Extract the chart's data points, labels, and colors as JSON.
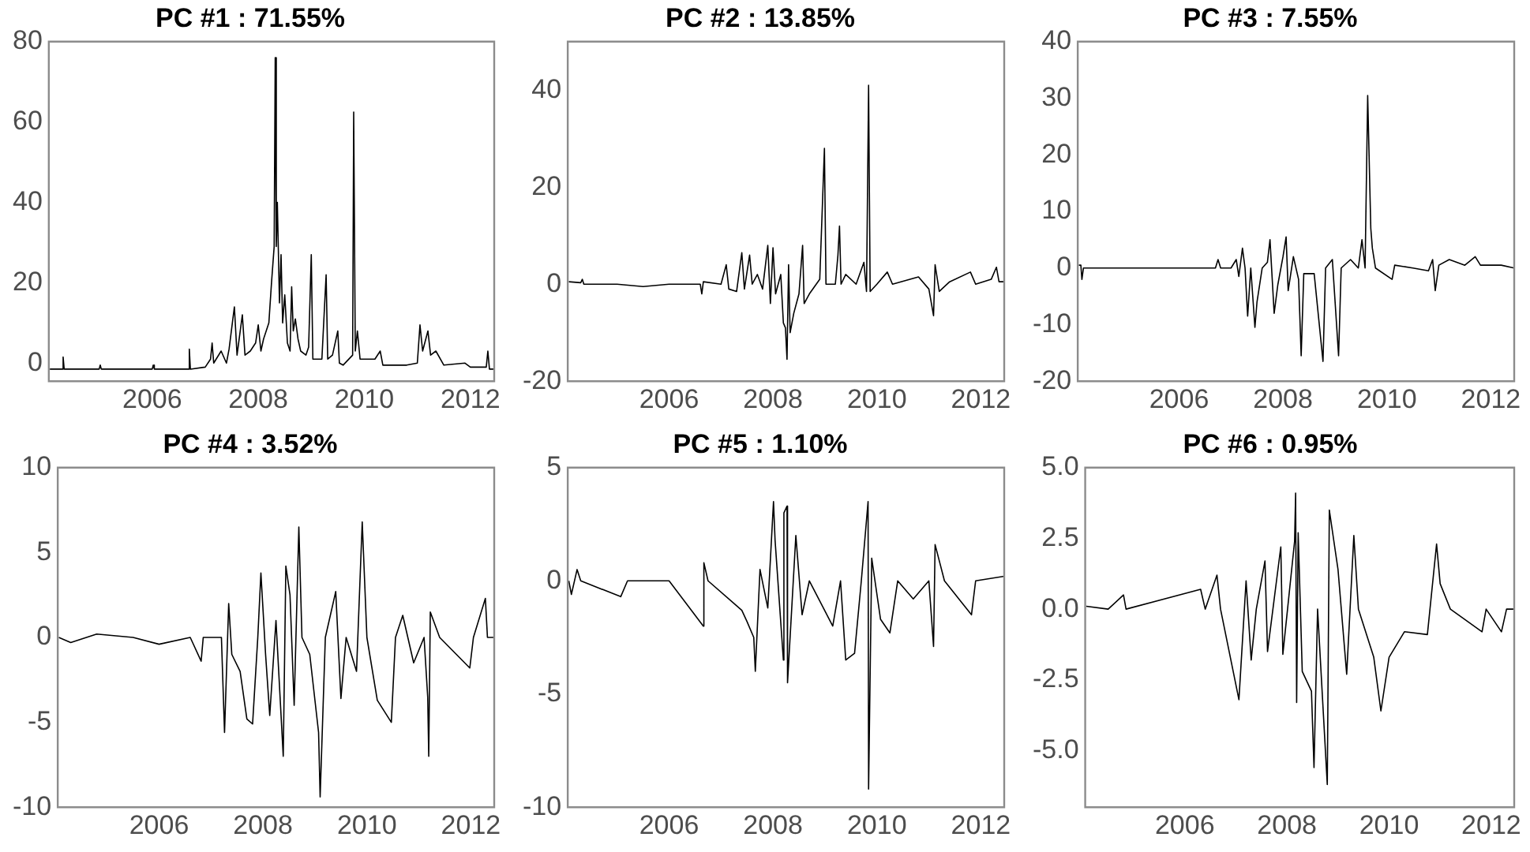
{
  "chart_data": [
    {
      "type": "line",
      "title": "PC #1 : 71.55%",
      "marker": "none",
      "line_style": "solid",
      "xlim": [
        2004.05,
        2012.45
      ],
      "xticks": [
        2006,
        2008,
        2010,
        2012
      ],
      "ylim": [
        -4.5,
        80
      ],
      "yticks": [
        0,
        20,
        40,
        60,
        80
      ],
      "x": [
        2004.07,
        2004.3,
        2004.32,
        2004.34,
        2005.0,
        2005.02,
        2005.04,
        2006.0,
        2006.02,
        2006.04,
        2006.68,
        2006.7,
        2006.72,
        2007.0,
        2007.1,
        2007.13,
        2007.16,
        2007.3,
        2007.4,
        2007.45,
        2007.55,
        2007.6,
        2007.7,
        2007.75,
        2007.85,
        2007.95,
        2008.0,
        2008.05,
        2008.1,
        2008.2,
        2008.25,
        2008.3,
        2008.32,
        2008.34,
        2008.36,
        2008.4,
        2008.43,
        2008.46,
        2008.5,
        2008.55,
        2008.6,
        2008.63,
        2008.66,
        2008.7,
        2008.75,
        2008.8,
        2008.9,
        2008.95,
        2009.0,
        2009.03,
        2009.2,
        2009.28,
        2009.31,
        2009.4,
        2009.5,
        2009.53,
        2009.6,
        2009.78,
        2009.8,
        2009.83,
        2009.87,
        2009.92,
        2010.2,
        2010.3,
        2010.35,
        2010.8,
        2011.0,
        2011.05,
        2011.1,
        2011.2,
        2011.25,
        2011.35,
        2011.5,
        2011.9,
        2012.0,
        2012.3,
        2012.33,
        2012.36,
        2012.45
      ],
      "series": [
        {
          "color": "#000000",
          "values": [
            -1.5,
            -1.5,
            1.5,
            -1.5,
            -1.5,
            -0.5,
            -1.5,
            -1.5,
            -0.5,
            -1.5,
            -1.5,
            3.5,
            -1.5,
            -1,
            1,
            5,
            0,
            3,
            0,
            3.5,
            14,
            2,
            12,
            2,
            3,
            5,
            9.5,
            3,
            6,
            10,
            20,
            29,
            76,
            29,
            40,
            15,
            27,
            10,
            17,
            5,
            3,
            19,
            8,
            11,
            6,
            3,
            2,
            4,
            27,
            1,
            1,
            22,
            1,
            2,
            8,
            0,
            -0.5,
            2,
            62.5,
            3,
            8,
            1,
            1,
            3,
            -0.5,
            -0.5,
            0,
            9.5,
            3,
            8,
            2,
            3,
            -0.5,
            0,
            -1,
            -1,
            3,
            -1.5,
            -1.5
          ]
        }
      ]
    },
    {
      "type": "line",
      "title": "PC #2 : 13.85%",
      "marker": "none",
      "line_style": "solid",
      "xlim": [
        2004.05,
        2012.45
      ],
      "xticks": [
        2006,
        2008,
        2010,
        2012
      ],
      "ylim": [
        -20,
        50
      ],
      "yticks": [
        -20,
        0,
        20,
        40
      ],
      "x": [
        2004.07,
        2004.3,
        2004.33,
        2004.36,
        2005.0,
        2005.5,
        2006.0,
        2006.6,
        2006.63,
        2006.66,
        2007.0,
        2007.1,
        2007.15,
        2007.3,
        2007.4,
        2007.45,
        2007.55,
        2007.6,
        2007.7,
        2007.8,
        2007.9,
        2007.95,
        2008.0,
        2008.05,
        2008.15,
        2008.2,
        2008.24,
        2008.27,
        2008.3,
        2008.33,
        2008.4,
        2008.5,
        2008.57,
        2008.6,
        2008.7,
        2008.9,
        2008.95,
        2008.99,
        2009.02,
        2009.2,
        2009.25,
        2009.28,
        2009.31,
        2009.4,
        2009.6,
        2009.75,
        2009.8,
        2009.84,
        2009.87,
        2010.0,
        2010.2,
        2010.3,
        2010.8,
        2011.0,
        2011.09,
        2011.12,
        2011.2,
        2011.4,
        2011.8,
        2011.9,
        2012.2,
        2012.3,
        2012.35,
        2012.45
      ],
      "series": [
        {
          "color": "#000000",
          "values": [
            0.5,
            0.3,
            1,
            0,
            0,
            -0.5,
            0,
            0,
            -2,
            0.5,
            0,
            4,
            -1,
            -1.5,
            6.5,
            -1,
            6,
            0,
            2,
            -1,
            8,
            -4,
            7.5,
            -2,
            2,
            -8,
            -9,
            -15.5,
            4,
            -10,
            -6,
            -2,
            8,
            -4,
            -2,
            1,
            16,
            28,
            0,
            0,
            6,
            12,
            0,
            2,
            0,
            4.5,
            -1.5,
            41,
            -1.5,
            0,
            2.5,
            0,
            1.5,
            -1,
            -6.5,
            4,
            -1.5,
            0.5,
            2.5,
            0,
            1,
            3.5,
            0.5,
            0.5
          ]
        }
      ]
    },
    {
      "type": "line",
      "title": "PC #3 : 7.55%",
      "marker": "none",
      "line_style": "solid",
      "xlim": [
        2004.05,
        2012.45
      ],
      "xticks": [
        2006,
        2008,
        2010,
        2012
      ],
      "ylim": [
        -20,
        40
      ],
      "yticks": [
        -20,
        -10,
        0,
        10,
        20,
        30,
        40
      ],
      "x": [
        2004.07,
        2004.11,
        2004.13,
        2004.16,
        2005.0,
        2006.0,
        2006.7,
        2006.75,
        2006.8,
        2007.0,
        2007.1,
        2007.15,
        2007.22,
        2007.27,
        2007.32,
        2007.38,
        2007.46,
        2007.5,
        2007.6,
        2007.7,
        2007.75,
        2007.83,
        2007.9,
        2008.0,
        2008.06,
        2008.1,
        2008.2,
        2008.3,
        2008.35,
        2008.4,
        2008.6,
        2008.77,
        2008.82,
        2008.95,
        2009.07,
        2009.12,
        2009.3,
        2009.45,
        2009.52,
        2009.58,
        2009.63,
        2009.69,
        2009.72,
        2009.78,
        2010.1,
        2010.15,
        2010.5,
        2010.8,
        2010.88,
        2010.93,
        2011.0,
        2011.2,
        2011.5,
        2011.7,
        2011.8,
        2012.2,
        2012.45
      ],
      "series": [
        {
          "color": "#000000",
          "values": [
            0.5,
            0.5,
            -2,
            0,
            0,
            0,
            0,
            1.5,
            0,
            0,
            1.5,
            -1.5,
            3.5,
            0,
            -8.5,
            0,
            -10.5,
            -6,
            0,
            1,
            5,
            -8,
            -3,
            2,
            5.5,
            -4,
            2,
            -2,
            -15.5,
            -1,
            -1,
            -16.5,
            0,
            1.5,
            -15.5,
            0,
            1.5,
            0,
            5,
            0,
            30.5,
            7,
            3.5,
            0,
            -2,
            0.5,
            0,
            -0.5,
            1.5,
            -4,
            0.5,
            1.5,
            0.5,
            2,
            0.5,
            0.5,
            0
          ]
        }
      ]
    },
    {
      "type": "line",
      "title": "PC #4 : 3.52%",
      "marker": "none",
      "line_style": "solid",
      "xlim": [
        2004.05,
        2012.45
      ],
      "xticks": [
        2006,
        2008,
        2010,
        2012
      ],
      "ylim": [
        -10,
        10
      ],
      "yticks": [
        -10,
        -5,
        0,
        5,
        10
      ],
      "x": [
        2004.07,
        2004.3,
        2004.8,
        2005.5,
        2006.0,
        2006.6,
        2006.81,
        2006.85,
        2007.2,
        2007.26,
        2007.34,
        2007.4,
        2007.56,
        2007.69,
        2007.8,
        2007.9,
        2007.96,
        2008.05,
        2008.13,
        2008.25,
        2008.39,
        2008.44,
        2008.52,
        2008.6,
        2008.69,
        2008.75,
        2008.9,
        2009.07,
        2009.1,
        2009.2,
        2009.4,
        2009.5,
        2009.6,
        2009.8,
        2009.91,
        2010.0,
        2010.2,
        2010.47,
        2010.55,
        2010.69,
        2010.9,
        2011.1,
        2011.17,
        2011.19,
        2011.22,
        2011.4,
        2011.98,
        2012.05,
        2012.28,
        2012.32,
        2012.45
      ],
      "series": [
        {
          "color": "#000000",
          "values": [
            0,
            -0.3,
            0.2,
            0,
            -0.4,
            0,
            -1.4,
            0,
            0,
            -5.6,
            2,
            -1,
            -2,
            -4.8,
            -5.1,
            0,
            3.8,
            -1,
            -4.6,
            1,
            -7,
            4.2,
            2.5,
            -4,
            6.5,
            0,
            -1,
            -5.6,
            -9.4,
            0,
            2.7,
            -3.6,
            0,
            -2,
            6.8,
            0,
            -3.7,
            -5,
            0,
            1.3,
            -1.5,
            0,
            -3.5,
            -7,
            1.5,
            0,
            -1.8,
            0,
            2.3,
            0,
            0
          ]
        }
      ]
    },
    {
      "type": "line",
      "title": "PC #5 : 1.10%",
      "marker": "none",
      "line_style": "solid",
      "xlim": [
        2004.05,
        2012.45
      ],
      "xticks": [
        2006,
        2008,
        2010,
        2012
      ],
      "ylim": [
        -10,
        5
      ],
      "yticks": [
        -10,
        -5,
        0,
        5
      ],
      "x": [
        2004.07,
        2004.12,
        2004.23,
        2004.3,
        2005.07,
        2005.2,
        2006.0,
        2006.66,
        2006.67,
        2006.75,
        2007.4,
        2007.5,
        2007.63,
        2007.66,
        2007.75,
        2007.9,
        2008.01,
        2008.04,
        2008.2,
        2008.21,
        2008.27,
        2008.28,
        2008.44,
        2008.56,
        2008.7,
        2009.15,
        2009.3,
        2009.4,
        2009.57,
        2009.7,
        2009.83,
        2009.84,
        2009.9,
        2010.07,
        2010.25,
        2010.4,
        2010.7,
        2011.0,
        2011.09,
        2011.12,
        2011.3,
        2011.82,
        2011.9,
        2012.45
      ],
      "series": [
        {
          "color": "#000000",
          "values": [
            0,
            -0.6,
            0.5,
            0,
            -0.7,
            0,
            0,
            -2,
            0.8,
            0,
            -1.3,
            -1.8,
            -2.5,
            -4,
            0.5,
            -1.2,
            3.5,
            1.8,
            -3.5,
            3,
            3.3,
            -4.5,
            2,
            -1.5,
            0,
            -2,
            0,
            -3.5,
            -3.2,
            0,
            3.5,
            -9.2,
            1,
            -1.7,
            -2.3,
            0,
            -0.8,
            0,
            -2.9,
            1.6,
            0,
            -1.5,
            0,
            0.2
          ]
        }
      ]
    },
    {
      "type": "line",
      "title": "PC #6 : 0.95%",
      "marker": "none",
      "line_style": "solid",
      "xlim": [
        2004.05,
        2012.45
      ],
      "xticks": [
        2006,
        2008,
        2010,
        2012
      ],
      "ylim": [
        -7,
        5
      ],
      "yticks": [
        {
          "value": -5,
          "label": "-5.0"
        },
        {
          "value": -2.5,
          "label": "-2.5"
        },
        {
          "value": 0,
          "label": "0.0"
        },
        {
          "value": 2.5,
          "label": "2.5"
        },
        {
          "value": 5,
          "label": "5.0"
        }
      ],
      "x": [
        2004.07,
        2004.5,
        2004.8,
        2004.85,
        2006.31,
        2006.4,
        2006.63,
        2006.7,
        2007.06,
        2007.1,
        2007.2,
        2007.3,
        2007.4,
        2007.57,
        2007.62,
        2007.88,
        2007.92,
        2008.15,
        2008.17,
        2008.19,
        2008.22,
        2008.3,
        2008.48,
        2008.53,
        2008.6,
        2008.79,
        2008.83,
        2009.0,
        2009.17,
        2009.31,
        2009.4,
        2009.7,
        2009.84,
        2010.0,
        2010.3,
        2010.75,
        2010.93,
        2011.0,
        2011.2,
        2011.82,
        2011.9,
        2012.2,
        2012.3,
        2012.45
      ],
      "series": [
        {
          "color": "#000000",
          "values": [
            0.1,
            0,
            0.5,
            0,
            0.7,
            0,
            1.2,
            0,
            -3.2,
            -2,
            1,
            -1.8,
            0,
            1.7,
            -1.5,
            2.2,
            -1.6,
            2.4,
            4.1,
            -3.3,
            2.7,
            -2.2,
            -2.9,
            -5.6,
            0,
            -6.2,
            3.5,
            1.4,
            -2.3,
            2.6,
            0,
            -1.7,
            -3.6,
            -1.7,
            -0.8,
            -0.9,
            2.3,
            0.9,
            0,
            -0.8,
            0,
            -0.8,
            0,
            0
          ]
        }
      ]
    }
  ]
}
